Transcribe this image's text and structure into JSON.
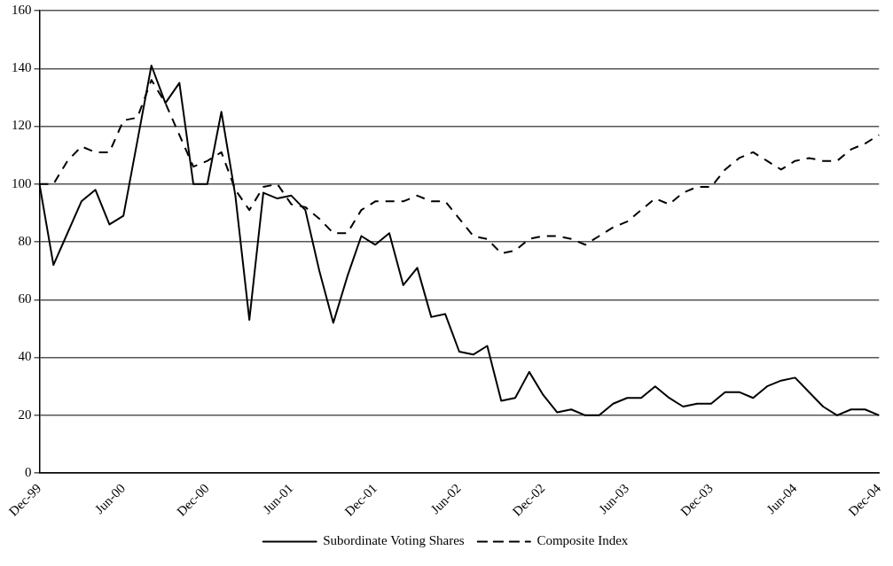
{
  "chart_data": {
    "type": "line",
    "categories": [
      "Dec-99",
      null,
      null,
      null,
      null,
      null,
      "Jun-00",
      null,
      null,
      null,
      null,
      null,
      "Dec-00",
      null,
      null,
      null,
      null,
      null,
      "Jun-01",
      null,
      null,
      null,
      null,
      null,
      "Dec-01",
      null,
      null,
      null,
      null,
      null,
      "Jun-02",
      null,
      null,
      null,
      null,
      null,
      "Dec-02",
      null,
      null,
      null,
      null,
      null,
      "Jun-03",
      null,
      null,
      null,
      null,
      null,
      "Dec-03",
      null,
      null,
      null,
      null,
      null,
      "Jun-04",
      null,
      null,
      null,
      null,
      null,
      "Dec-04"
    ],
    "series": [
      {
        "name": "Subordinate Voting Shares",
        "color": "#000000",
        "line_style": "solid",
        "values": [
          100,
          72,
          83,
          94,
          98,
          86,
          89,
          115,
          141,
          128,
          135,
          100,
          100,
          125,
          96,
          53,
          97,
          95,
          96,
          91,
          70,
          52,
          68,
          82,
          79,
          83,
          65,
          71,
          54,
          55,
          42,
          41,
          44,
          25,
          26,
          35,
          27,
          21,
          22,
          20,
          20,
          24,
          26,
          26,
          30,
          26,
          23,
          24,
          24,
          28,
          28,
          26,
          30,
          32,
          33,
          28,
          23,
          20,
          22,
          22,
          20
        ]
      },
      {
        "name": "Composite Index",
        "color": "#000000",
        "line_style": "dashed",
        "values": [
          100,
          100,
          108,
          113,
          111,
          111,
          122,
          123,
          136,
          128,
          117,
          106,
          108,
          111,
          98,
          91,
          99,
          100,
          93,
          92,
          88,
          83,
          83,
          91,
          94,
          94,
          94,
          96,
          94,
          94,
          88,
          82,
          81,
          76,
          77,
          81,
          82,
          82,
          81,
          79,
          82,
          85,
          87,
          91,
          95,
          93,
          97,
          99,
          99,
          105,
          109,
          111,
          108,
          105,
          108,
          109,
          108,
          108,
          112,
          114,
          117
        ]
      }
    ],
    "ylim": [
      0,
      160
    ],
    "yticks": [
      0,
      20,
      40,
      60,
      80,
      100,
      120,
      140,
      160
    ],
    "grid": "y",
    "legend": "bottom",
    "marker": "none"
  }
}
